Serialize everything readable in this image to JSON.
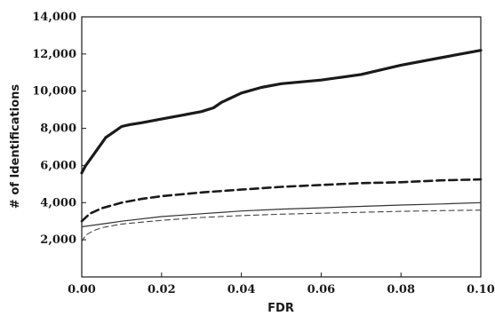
{
  "chart_data": {
    "type": "line",
    "title": "",
    "xlabel": "FDR",
    "ylabel": "# of Identifications",
    "xlim": [
      0,
      0.1
    ],
    "ylim": [
      0,
      14000
    ],
    "grid": false,
    "legend": "none",
    "x_ticks": [
      0,
      0.02,
      0.04,
      0.06,
      0.08,
      0.1
    ],
    "x_tick_labels": [
      "0.00",
      "0.02",
      "0.04",
      "0.06",
      "0.08",
      "0.10"
    ],
    "y_ticks": [
      2000,
      4000,
      6000,
      8000,
      10000,
      12000,
      14000
    ],
    "y_tick_labels": [
      "2,000",
      "4,000",
      "6,000",
      "8,000",
      "10,000",
      "12,000",
      "14,000"
    ],
    "series": [
      {
        "style": "thick-solid",
        "color": "#1a1a1a",
        "x": [
          0,
          0.001,
          0.002,
          0.003,
          0.004,
          0.005,
          0.006,
          0.008,
          0.01,
          0.012,
          0.015,
          0.02,
          0.025,
          0.03,
          0.033,
          0.035,
          0.04,
          0.045,
          0.05,
          0.06,
          0.07,
          0.08,
          0.09,
          0.1
        ],
        "y": [
          5600,
          6000,
          6300,
          6600,
          6900,
          7200,
          7500,
          7800,
          8100,
          8200,
          8300,
          8500,
          8700,
          8900,
          9100,
          9400,
          9900,
          10200,
          10400,
          10600,
          10900,
          11400,
          11800,
          12200
        ]
      },
      {
        "style": "thick-dashed",
        "color": "#1a1a1a",
        "x": [
          0,
          0.002,
          0.005,
          0.01,
          0.015,
          0.02,
          0.03,
          0.04,
          0.05,
          0.06,
          0.07,
          0.08,
          0.09,
          0.1
        ],
        "y": [
          3000,
          3400,
          3700,
          4000,
          4200,
          4350,
          4550,
          4700,
          4850,
          4950,
          5050,
          5100,
          5200,
          5250
        ]
      },
      {
        "style": "thin-solid",
        "color": "#333333",
        "x": [
          0,
          0.005,
          0.01,
          0.02,
          0.03,
          0.04,
          0.05,
          0.06,
          0.07,
          0.08,
          0.09,
          0.1
        ],
        "y": [
          2700,
          2850,
          3000,
          3250,
          3400,
          3550,
          3650,
          3720,
          3800,
          3870,
          3930,
          4000
        ]
      },
      {
        "style": "thin-dashed",
        "color": "#444444",
        "x": [
          0,
          0.001,
          0.003,
          0.005,
          0.01,
          0.02,
          0.03,
          0.04,
          0.05,
          0.06,
          0.07,
          0.08,
          0.09,
          0.1
        ],
        "y": [
          1900,
          2250,
          2500,
          2650,
          2850,
          3050,
          3200,
          3300,
          3380,
          3430,
          3480,
          3530,
          3570,
          3600
        ]
      }
    ]
  }
}
